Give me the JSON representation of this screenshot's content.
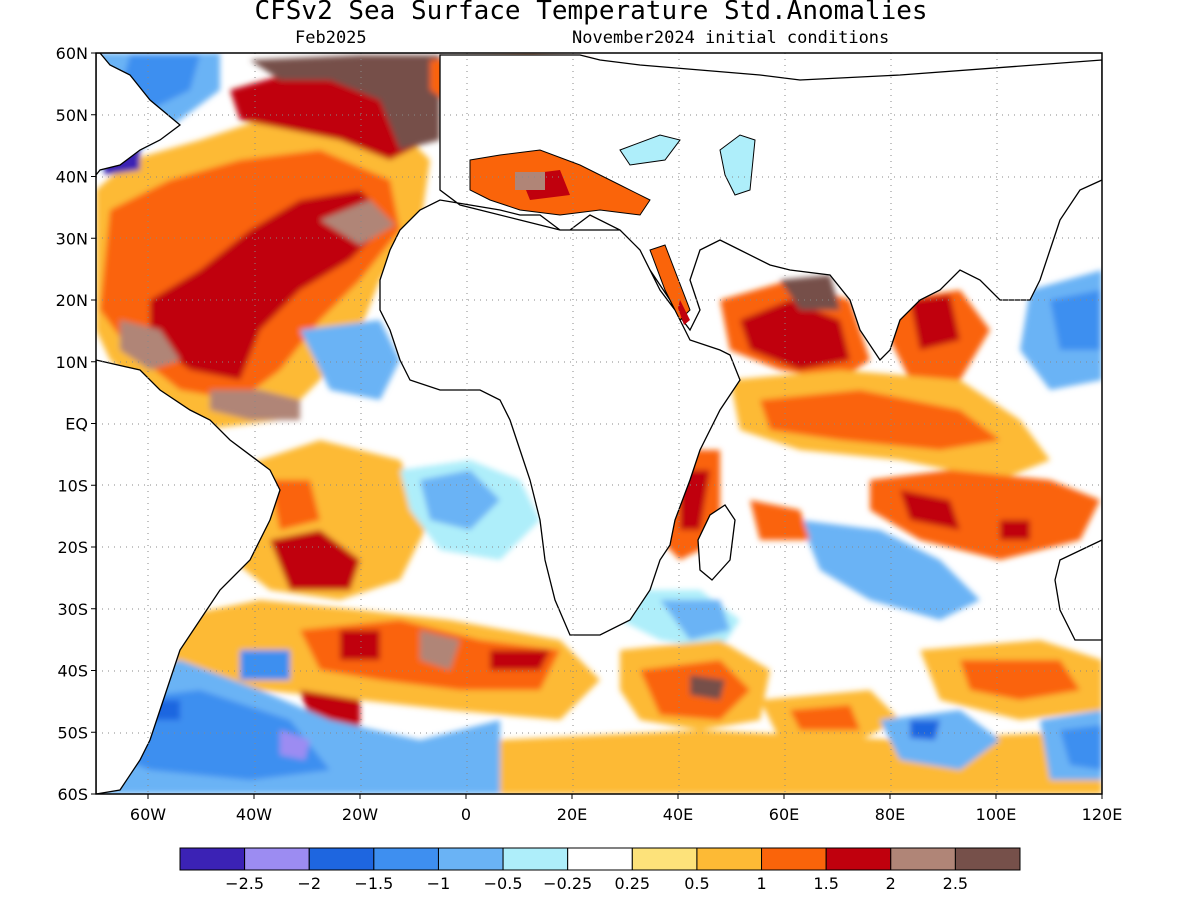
{
  "title": "CFSv2 Sea Surface Temperature Std.Anomalies",
  "subtitle_left": "Feb2025",
  "subtitle_right": "November2024 initial conditions",
  "axes": {
    "lat_ticks": [
      "60N",
      "50N",
      "40N",
      "30N",
      "20N",
      "10N",
      "EQ",
      "10S",
      "20S",
      "30S",
      "40S",
      "50S",
      "60S"
    ],
    "lon_ticks": [
      "60W",
      "40W",
      "20W",
      "0",
      "20E",
      "40E",
      "60E",
      "80E",
      "100E",
      "120E"
    ],
    "grid": "dotted"
  },
  "colorbar": {
    "colors": [
      "#3b22b5",
      "#9c8cf2",
      "#1e66e0",
      "#3e8ff0",
      "#6ab3f5",
      "#aeeefa",
      "#ffffff",
      "#fde27a",
      "#fdba35",
      "#fa640a",
      "#c0000d",
      "#b08577",
      "#76504a"
    ],
    "labels": [
      "-2.5",
      "-2",
      "-1.5",
      "-1",
      "-0.5",
      "-0.25",
      "0.25",
      "0.5",
      "1",
      "1.5",
      "2",
      "2.5"
    ]
  },
  "land_color": "#ffffff",
  "coast_color": "#000000"
}
